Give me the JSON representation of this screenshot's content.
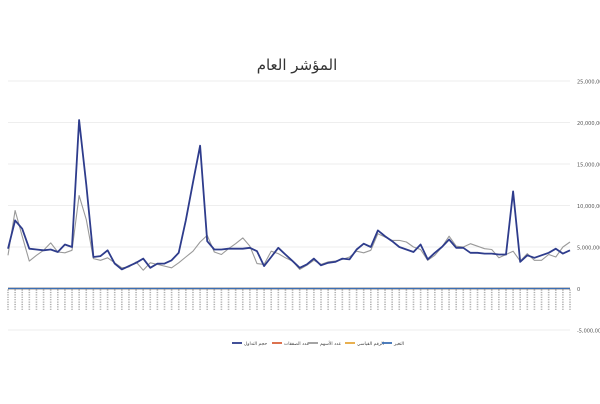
{
  "chart_data": {
    "type": "line",
    "title": "المؤشر العام",
    "ylim": [
      -5000000,
      25000000
    ],
    "y_ticks": [
      -5000000,
      0,
      5000000,
      10000000,
      15000000,
      20000000,
      25000000
    ],
    "y_tick_labels": [
      "-5,000,000",
      "0",
      "5,000,000",
      "10,000,000",
      "15,000,000",
      "20,000,000",
      "25,000,000"
    ],
    "grid": true,
    "legend_position": "bottom",
    "x_point_count": 80,
    "series": [
      {
        "name": "حجم التداول",
        "color": "#2e3c8c",
        "values": [
          4800000,
          8200000,
          7200000,
          4800000,
          4700000,
          4600000,
          4700000,
          4400000,
          5300000,
          5000000,
          20300000,
          12500000,
          3800000,
          3900000,
          4600000,
          3000000,
          2300000,
          2700000,
          3100000,
          3600000,
          2500000,
          3000000,
          3000000,
          3400000,
          4300000,
          8200000,
          12800000,
          17200000,
          5700000,
          4700000,
          4700000,
          4800000,
          4800000,
          4800000,
          4900000,
          4500000,
          2700000,
          3800000,
          4900000,
          4100000,
          3300000,
          2500000,
          2900000,
          3600000,
          2800000,
          3100000,
          3200000,
          3600000,
          3500000,
          4700000,
          5400000,
          5000000,
          7000000,
          6300000,
          5700000,
          5000000,
          4700000,
          4400000,
          5300000,
          3500000,
          4300000,
          5000000,
          5900000,
          4900000,
          4900000,
          4300000,
          4300000,
          4200000,
          4200000,
          4100000,
          4100000,
          11700000,
          3200000,
          4000000,
          3700000,
          4000000,
          4300000,
          4800000,
          4200000,
          4600000
        ]
      },
      {
        "name": "عدد الصفقات",
        "color": "#d9623b",
        "values": [
          0,
          0,
          0,
          0,
          0,
          0,
          0,
          0,
          0,
          0,
          0,
          0,
          0,
          0,
          0,
          0,
          0,
          0,
          0,
          0,
          0,
          0,
          0,
          0,
          0,
          0,
          0,
          0,
          0,
          0,
          0,
          0,
          0,
          0,
          0,
          0,
          0,
          0,
          0,
          0,
          0,
          0,
          0,
          0,
          0,
          0,
          0,
          0,
          0,
          0,
          0,
          0,
          0,
          0,
          0,
          0,
          0,
          0,
          0,
          0,
          0,
          0,
          0,
          0,
          0,
          0,
          0,
          0,
          0,
          0,
          0,
          0,
          0,
          0,
          0,
          0,
          0,
          0,
          0,
          0
        ]
      },
      {
        "name": "عدد الأسهم",
        "color": "#9a9a9a",
        "values": [
          4000000,
          9400000,
          6300000,
          3300000,
          4000000,
          4600000,
          5500000,
          4400000,
          4300000,
          4600000,
          11200000,
          8300000,
          3600000,
          3400000,
          3700000,
          3100000,
          2500000,
          2600000,
          3200000,
          2200000,
          3100000,
          2900000,
          2700000,
          2500000,
          3100000,
          3800000,
          4500000,
          5600000,
          6400000,
          4400000,
          4100000,
          4800000,
          5400000,
          6100000,
          5100000,
          3000000,
          2900000,
          4500000,
          4200000,
          3700000,
          3300000,
          2300000,
          2800000,
          3400000,
          2900000,
          3200000,
          3300000,
          3500000,
          3800000,
          4500000,
          4300000,
          4600000,
          6600000,
          6200000,
          5800000,
          5800000,
          5600000,
          5000000,
          4700000,
          3400000,
          4000000,
          5000000,
          6300000,
          5100000,
          5000000,
          5400000,
          5100000,
          4800000,
          4700000,
          3700000,
          4100000,
          4500000,
          3300000,
          4200000,
          3400000,
          3400000,
          4100000,
          3800000,
          5000000,
          5600000
        ]
      },
      {
        "name": "الرقم القياسي",
        "color": "#e6a73d",
        "values": [
          0,
          0,
          0,
          0,
          0,
          0,
          0,
          0,
          0,
          0,
          0,
          0,
          0,
          0,
          0,
          0,
          0,
          0,
          0,
          0,
          0,
          0,
          0,
          0,
          0,
          0,
          0,
          0,
          0,
          0,
          0,
          0,
          0,
          0,
          0,
          0,
          0,
          0,
          0,
          0,
          0,
          0,
          0,
          0,
          0,
          0,
          0,
          0,
          0,
          0,
          0,
          0,
          0,
          0,
          0,
          0,
          0,
          0,
          0,
          0,
          0,
          0,
          0,
          0,
          0,
          0,
          0,
          0,
          0,
          0,
          0,
          0,
          0,
          0,
          0,
          0,
          0,
          0,
          0,
          0
        ]
      },
      {
        "name": "التغير",
        "color": "#3b6fb5",
        "values": [
          0,
          0,
          0,
          0,
          0,
          0,
          0,
          0,
          0,
          0,
          0,
          0,
          0,
          0,
          0,
          0,
          0,
          0,
          0,
          0,
          0,
          0,
          0,
          0,
          0,
          0,
          0,
          0,
          0,
          0,
          0,
          0,
          0,
          0,
          0,
          0,
          0,
          0,
          0,
          0,
          0,
          0,
          0,
          0,
          0,
          0,
          0,
          0,
          0,
          0,
          0,
          0,
          0,
          0,
          0,
          0,
          0,
          0,
          0,
          0,
          0,
          0,
          0,
          0,
          0,
          0,
          0,
          0,
          0,
          0,
          0,
          0,
          0,
          0,
          0,
          0,
          0,
          0,
          0,
          0
        ]
      }
    ]
  }
}
